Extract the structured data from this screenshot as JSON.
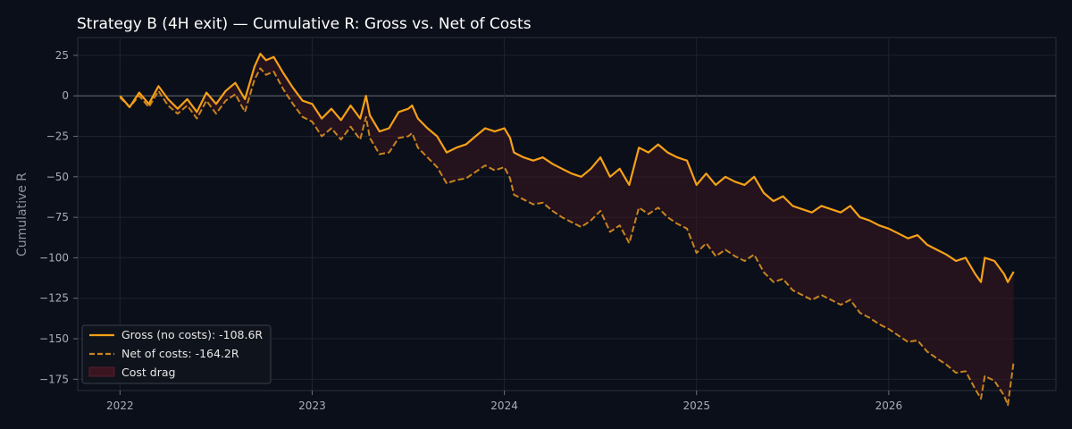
{
  "chart_data": {
    "type": "line",
    "title": "Strategy B (4H exit) — Cumulative R: Gross vs. Net of Costs",
    "xlabel": "",
    "ylabel": "Cumulative R",
    "x_ticks": [
      "2022",
      "2023",
      "2024",
      "2025",
      "2026"
    ],
    "y_ticks": [
      25,
      0,
      -25,
      -50,
      -75,
      -100,
      -125,
      -150,
      -175
    ],
    "xlim": [
      2021.78,
      2026.87
    ],
    "ylim": [
      -182,
      36
    ],
    "grid": true,
    "legend_position": "lower-left",
    "series": [
      {
        "name": "Gross (no costs): -108.6R",
        "style": "solid",
        "color": "#f5a117",
        "x": [
          2022.0,
          2022.05,
          2022.1,
          2022.15,
          2022.2,
          2022.25,
          2022.3,
          2022.35,
          2022.4,
          2022.45,
          2022.5,
          2022.55,
          2022.6,
          2022.65,
          2022.7,
          2022.73,
          2022.76,
          2022.8,
          2022.85,
          2022.9,
          2022.95,
          2023.0,
          2023.05,
          2023.1,
          2023.15,
          2023.2,
          2023.25,
          2023.28,
          2023.3,
          2023.35,
          2023.4,
          2023.45,
          2023.5,
          2023.52,
          2023.55,
          2023.6,
          2023.65,
          2023.7,
          2023.75,
          2023.8,
          2023.85,
          2023.9,
          2023.95,
          2024.0,
          2024.03,
          2024.05,
          2024.1,
          2024.15,
          2024.2,
          2024.25,
          2024.3,
          2024.35,
          2024.4,
          2024.45,
          2024.5,
          2024.55,
          2024.6,
          2024.65,
          2024.7,
          2024.75,
          2024.8,
          2024.85,
          2024.9,
          2024.95,
          2025.0,
          2025.05,
          2025.1,
          2025.15,
          2025.2,
          2025.25,
          2025.3,
          2025.35,
          2025.4,
          2025.45,
          2025.5,
          2025.55,
          2025.6,
          2025.65,
          2025.7,
          2025.75,
          2025.8,
          2025.85,
          2025.9,
          2025.95,
          2026.0,
          2026.05,
          2026.1,
          2026.15,
          2026.2,
          2026.25,
          2026.3,
          2026.35,
          2026.4,
          2026.45,
          2026.48,
          2026.5,
          2026.55,
          2026.6,
          2026.62,
          2026.65
        ],
        "y": [
          0,
          -7,
          2,
          -5,
          6,
          -2,
          -8,
          -2,
          -10,
          2,
          -5,
          3,
          8,
          -2,
          18,
          26,
          22,
          24,
          14,
          5,
          -3,
          -5,
          -14,
          -8,
          -15,
          -6,
          -14,
          0,
          -12,
          -22,
          -20,
          -10,
          -8,
          -6,
          -14,
          -20,
          -25,
          -35,
          -32,
          -30,
          -25,
          -20,
          -22,
          -20,
          -26,
          -35,
          -38,
          -40,
          -38,
          -42,
          -45,
          -48,
          -50,
          -45,
          -38,
          -50,
          -45,
          -55,
          -32,
          -35,
          -30,
          -35,
          -38,
          -40,
          -55,
          -48,
          -55,
          -50,
          -53,
          -55,
          -50,
          -60,
          -65,
          -62,
          -68,
          -70,
          -72,
          -68,
          -70,
          -72,
          -68,
          -75,
          -77,
          -80,
          -82,
          -85,
          -88,
          -86,
          -92,
          -95,
          -98,
          -102,
          -100,
          -110,
          -115,
          -100,
          -102,
          -110,
          -115,
          -108.6
        ]
      },
      {
        "name": "Net of costs: -164.2R",
        "style": "dashed",
        "color": "#c8841e",
        "x": [
          2022.0,
          2022.05,
          2022.1,
          2022.15,
          2022.2,
          2022.25,
          2022.3,
          2022.35,
          2022.4,
          2022.45,
          2022.5,
          2022.55,
          2022.6,
          2022.65,
          2022.7,
          2022.73,
          2022.76,
          2022.8,
          2022.85,
          2022.9,
          2022.95,
          2023.0,
          2023.05,
          2023.1,
          2023.15,
          2023.2,
          2023.25,
          2023.28,
          2023.3,
          2023.35,
          2023.4,
          2023.45,
          2023.5,
          2023.52,
          2023.55,
          2023.6,
          2023.65,
          2023.7,
          2023.75,
          2023.8,
          2023.85,
          2023.9,
          2023.95,
          2024.0,
          2024.03,
          2024.05,
          2024.1,
          2024.15,
          2024.2,
          2024.25,
          2024.3,
          2024.35,
          2024.4,
          2024.45,
          2024.5,
          2024.55,
          2024.6,
          2024.65,
          2024.7,
          2024.75,
          2024.8,
          2024.85,
          2024.9,
          2024.95,
          2025.0,
          2025.05,
          2025.1,
          2025.15,
          2025.2,
          2025.25,
          2025.3,
          2025.35,
          2025.4,
          2025.45,
          2025.5,
          2025.55,
          2025.6,
          2025.65,
          2025.7,
          2025.75,
          2025.8,
          2025.85,
          2025.9,
          2025.95,
          2026.0,
          2026.05,
          2026.1,
          2026.15,
          2026.2,
          2026.25,
          2026.3,
          2026.35,
          2026.4,
          2026.45,
          2026.48,
          2026.5,
          2026.55,
          2026.6,
          2026.62,
          2026.65
        ],
        "y": [
          -1,
          -7,
          0,
          -7,
          3,
          -6,
          -11,
          -6,
          -14,
          -3,
          -11,
          -3,
          1,
          -10,
          10,
          17,
          13,
          15,
          4,
          -5,
          -13,
          -16,
          -25,
          -20,
          -27,
          -19,
          -27,
          -13,
          -26,
          -36,
          -35,
          -26,
          -25,
          -23,
          -32,
          -38,
          -44,
          -54,
          -52,
          -51,
          -47,
          -43,
          -46,
          -44,
          -51,
          -61,
          -64,
          -67,
          -66,
          -71,
          -75,
          -78,
          -81,
          -77,
          -71,
          -84,
          -80,
          -91,
          -69,
          -73,
          -69,
          -75,
          -79,
          -82,
          -97,
          -91,
          -99,
          -95,
          -99,
          -102,
          -98,
          -109,
          -115,
          -113,
          -120,
          -123,
          -126,
          -123,
          -126,
          -129,
          -126,
          -134,
          -137,
          -141,
          -144,
          -148,
          -152,
          -151,
          -158,
          -162,
          -166,
          -171,
          -170,
          -181,
          -187,
          -173,
          -176,
          -185,
          -191,
          -164.2
        ]
      }
    ],
    "fill_label": "Cost drag",
    "fill_color": "#5a1e2a"
  }
}
